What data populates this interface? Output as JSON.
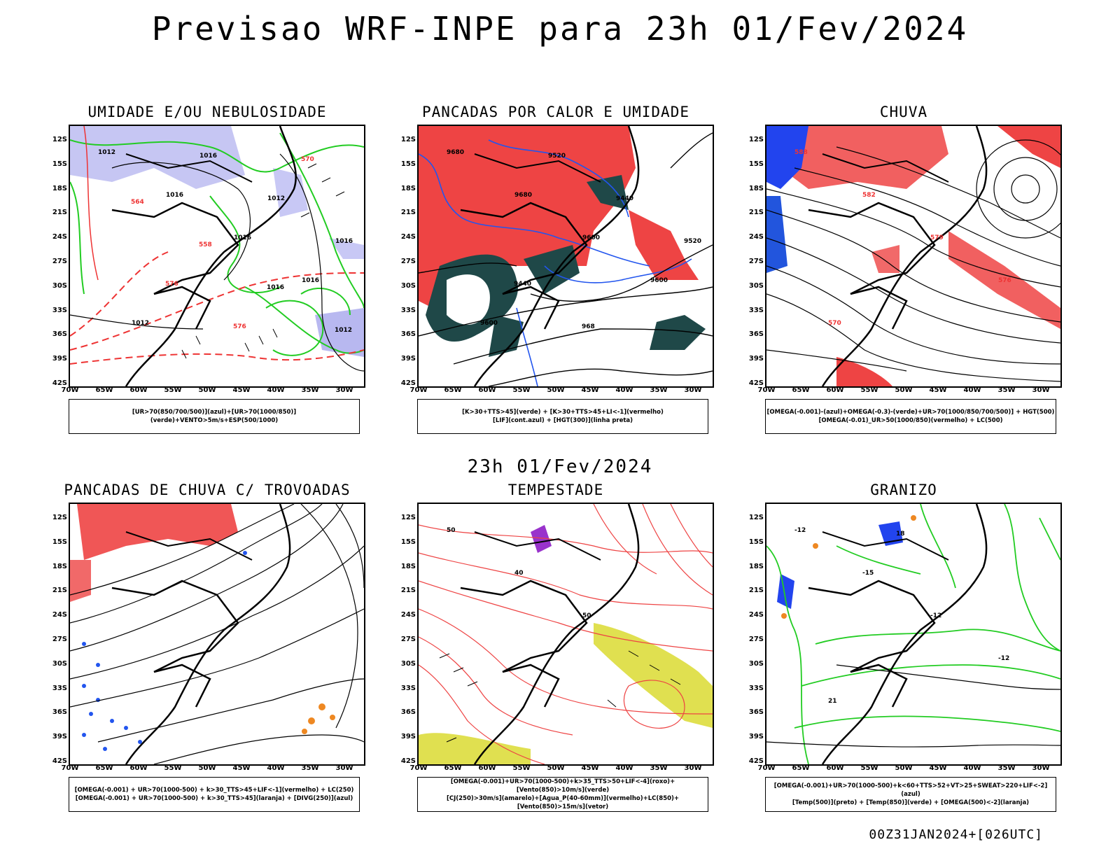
{
  "title": "Previsao WRF-INPE  para 23h 01/Fev/2024",
  "subtitle": "23h 01/Fev/2024",
  "footer": "00Z31JAN2024+[026UTC]",
  "lat_labels": [
    "12S",
    "15S",
    "18S",
    "21S",
    "24S",
    "27S",
    "30S",
    "33S",
    "36S",
    "39S",
    "42S"
  ],
  "lon_labels": [
    "70W",
    "65W",
    "60W",
    "55W",
    "50W",
    "45W",
    "40W",
    "35W",
    "30W"
  ],
  "panels": [
    {
      "title": "UMIDADE E/OU NEBULOSIDADE",
      "legend1": "[UR>70(850/700/500)](azul)+[UR>70(1000/850)](verde)+VENTO>5m/s+ESP(500/1000)",
      "legend2": "",
      "labels": [
        "1012",
        "1016",
        "1016",
        "1016",
        "1012",
        "1016",
        "1012",
        "1016",
        "576",
        "576",
        "570",
        "564",
        "558",
        "1016",
        "1012"
      ]
    },
    {
      "title": "PANCADAS POR CALOR E UMIDADE",
      "legend1": "[K>30+TTS>45](verde) + [K>30+TTS>45+LI<-1](vermelho)",
      "legend2": "[LIF](cont.azul) + [HGT(300)](linha preta)",
      "labels": [
        "9680",
        "9680",
        "9600",
        "9600",
        "9600",
        "9520",
        "9440",
        "9520",
        "9440",
        "968"
      ]
    },
    {
      "title": "CHUVA",
      "legend1": "[OMEGA(-0.001)-(azul)+OMEGA(-0.3)-(verde)+UR>70(1000/850/700/500)] + HGT(500)",
      "legend2": "[OMEGA(-0.01)_UR>50(1000/850)(vermelho) + LC(500)",
      "labels": [
        "588",
        "582",
        "579",
        "576",
        "570"
      ]
    },
    {
      "title": "PANCADAS DE CHUVA C/ TROVOADAS",
      "legend1": "[OMEGA(-0.001) + UR>70(1000-500) + k>30_TTS>45+LIF<-1](vermelho) + LC(250)",
      "legend2": "[OMEGA(-0.001) + UR>70(1000-500) + k>30_TTS>45](laranja) + [DIVG(250)](azul)",
      "labels": []
    },
    {
      "title": "TEMPESTADE",
      "legend1": "[OMEGA(-0.001)+UR>70(1000-500)+k>35_TTS>50+LIF<-4](roxo)+[Vento(850)>10m/s](verde)",
      "legend2": "[CJ(250)>30m/s](amarelo)+[Agua_P(40-60mm)](vermelho)+LC(850)+[Vento(850)>15m/s](vetor)",
      "labels": [
        "50",
        "40",
        "50"
      ]
    },
    {
      "title": "GRANIZO",
      "legend1": "[OMEGA(-0.001)+UR>70(1000-500)+k<60+TTS>52+VT>25+SWEAT>220+LIF<-2](azul)",
      "legend2": "[Temp(500)](preto) + [Temp(850)](verde) + [OMEGA(500)<-2](laranja)",
      "labels": [
        "-12",
        "-15",
        "-12",
        "-12",
        "21",
        "18"
      ]
    }
  ]
}
